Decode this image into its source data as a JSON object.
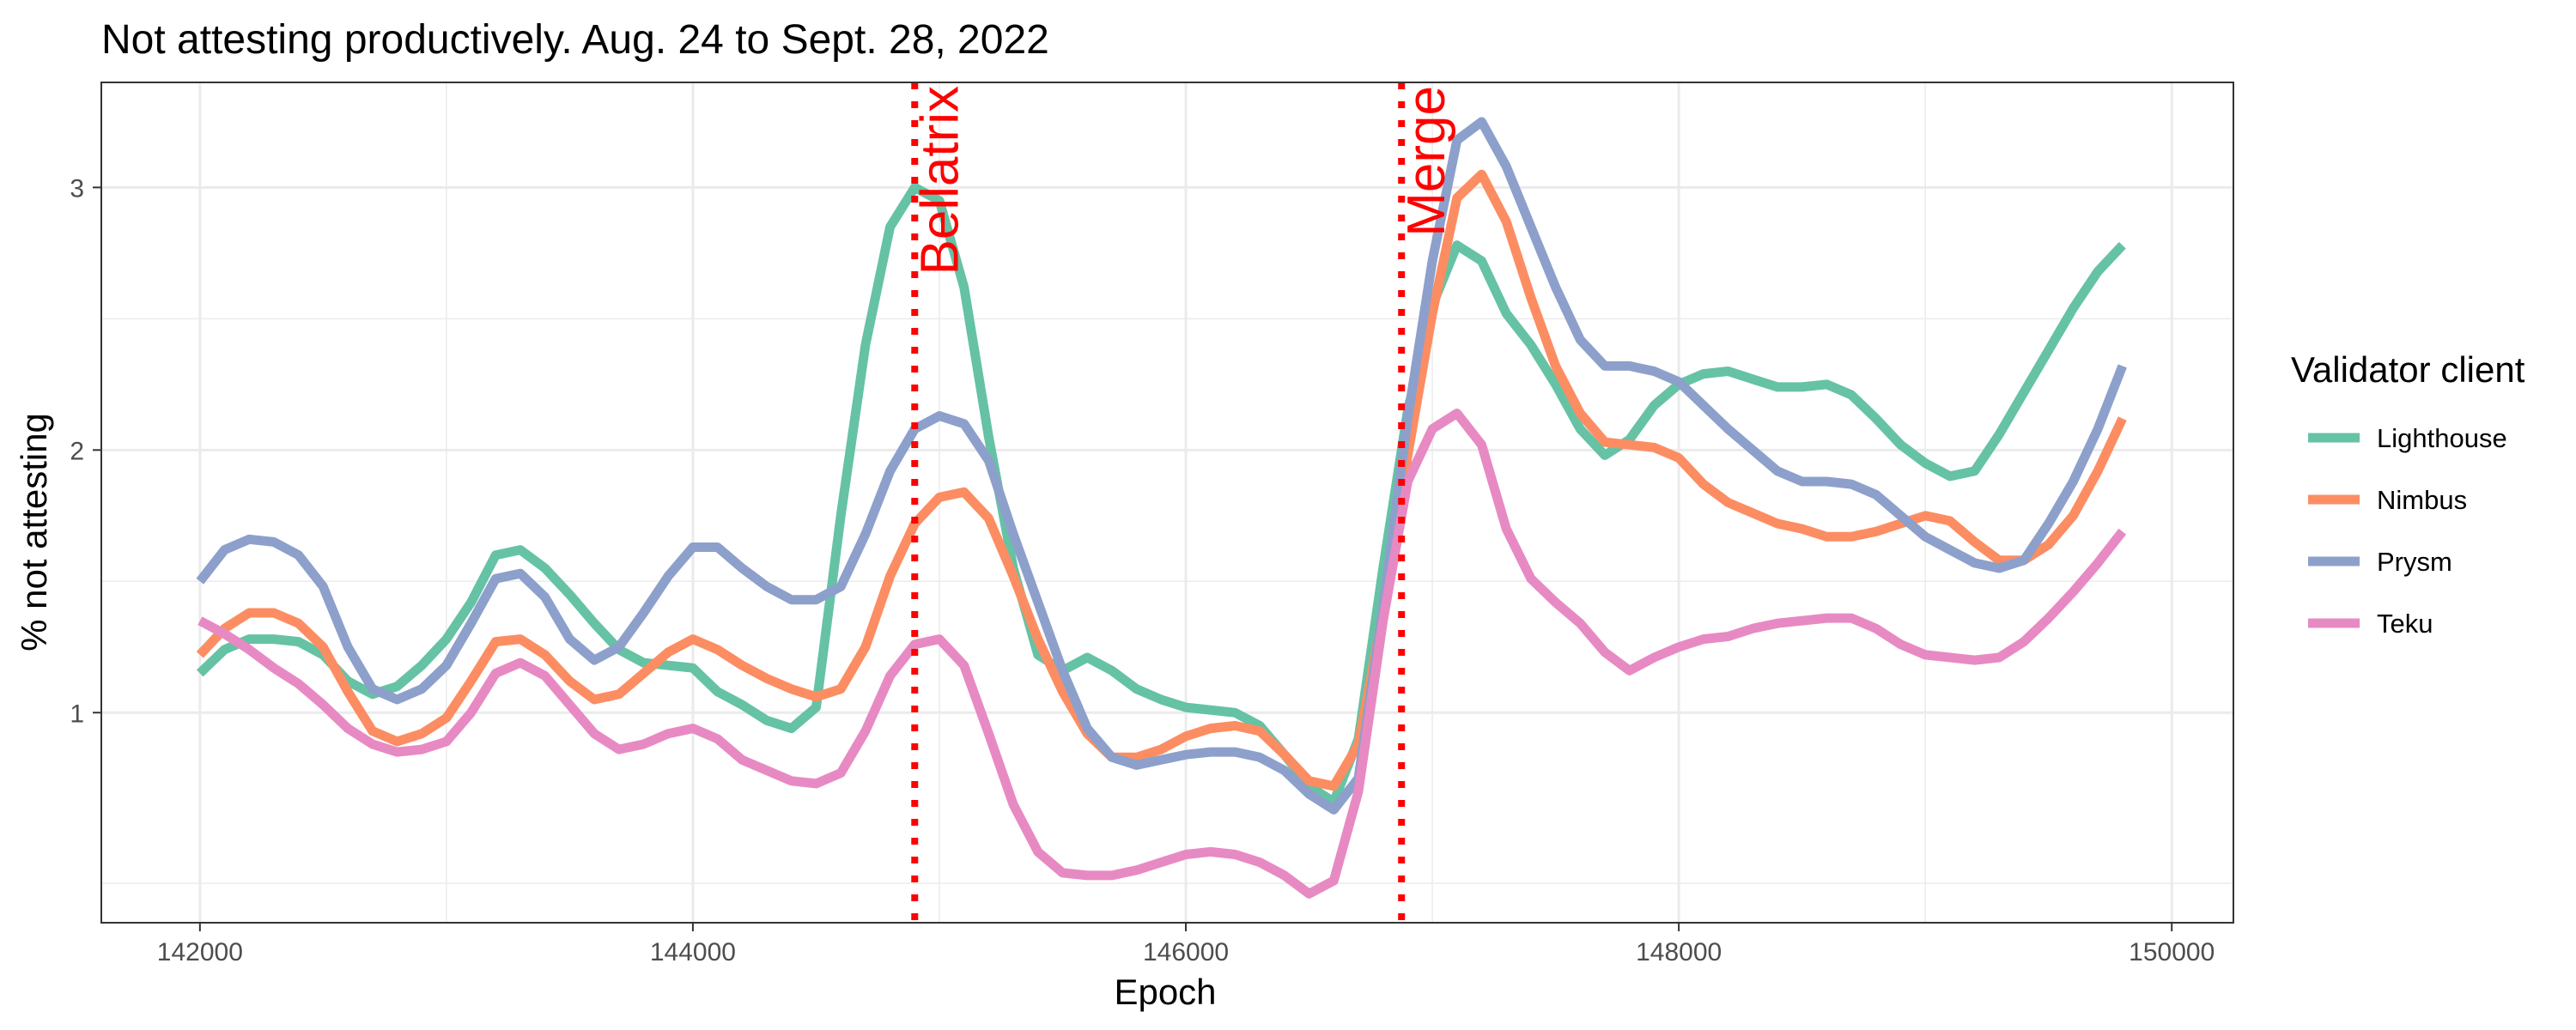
{
  "chart_data": {
    "type": "line",
    "title": "Not attesting productively. Aug. 24 to Sept. 28, 2022",
    "xlabel": "Epoch",
    "ylabel": "% not attesting",
    "xlim": [
      141600,
      150250
    ],
    "ylim": [
      0.2,
      3.4
    ],
    "x_ticks": [
      142000,
      144000,
      146000,
      148000,
      150000
    ],
    "x_tick_labels": [
      "142000",
      "144000",
      "146000",
      "148000",
      "150000"
    ],
    "y_ticks": [
      1,
      2,
      3
    ],
    "y_tick_labels": [
      "1",
      "2",
      "3"
    ],
    "grid": true,
    "legend": {
      "title": "Validator client",
      "position": "right"
    },
    "x": [
      142000,
      142100,
      142200,
      142300,
      142400,
      142500,
      142600,
      142700,
      142800,
      142900,
      143000,
      143100,
      143200,
      143300,
      143400,
      143500,
      143600,
      143700,
      143800,
      143900,
      144000,
      144100,
      144200,
      144300,
      144400,
      144500,
      144600,
      144700,
      144800,
      144900,
      145000,
      145100,
      145200,
      145300,
      145400,
      145500,
      145600,
      145700,
      145800,
      145900,
      146000,
      146100,
      146200,
      146300,
      146400,
      146500,
      146600,
      146700,
      146800,
      146900,
      147000,
      147100,
      147200,
      147300,
      147400,
      147500,
      147600,
      147700,
      147800,
      147900,
      148000,
      148100,
      148200,
      148300,
      148400,
      148500,
      148600,
      148700,
      148800,
      148900,
      149000,
      149100,
      149200,
      149300,
      149400,
      149500,
      149600,
      149700,
      149800
    ],
    "series": [
      {
        "name": "Lighthouse",
        "color": "#66c2a5",
        "values": [
          1.15,
          1.24,
          1.28,
          1.28,
          1.27,
          1.22,
          1.12,
          1.07,
          1.1,
          1.18,
          1.28,
          1.42,
          1.6,
          1.62,
          1.55,
          1.45,
          1.34,
          1.24,
          1.19,
          1.18,
          1.17,
          1.08,
          1.03,
          0.97,
          0.94,
          1.02,
          1.75,
          2.4,
          2.85,
          3.0,
          2.95,
          2.62,
          2.05,
          1.55,
          1.22,
          1.16,
          1.21,
          1.16,
          1.09,
          1.05,
          1.02,
          1.01,
          1.0,
          0.95,
          0.84,
          0.72,
          0.66,
          0.9,
          1.55,
          2.15,
          2.55,
          2.78,
          2.72,
          2.52,
          2.4,
          2.25,
          2.08,
          1.98,
          2.04,
          2.17,
          2.25,
          2.29,
          2.3,
          2.27,
          2.24,
          2.24,
          2.25,
          2.21,
          2.12,
          2.02,
          1.95,
          1.9,
          1.92,
          2.06,
          2.22,
          2.38,
          2.54,
          2.68,
          2.78
        ]
      },
      {
        "name": "Nimbus",
        "color": "#fc8d62",
        "values": [
          1.22,
          1.32,
          1.38,
          1.38,
          1.34,
          1.25,
          1.08,
          0.93,
          0.89,
          0.92,
          0.98,
          1.12,
          1.27,
          1.28,
          1.22,
          1.12,
          1.05,
          1.07,
          1.15,
          1.23,
          1.28,
          1.24,
          1.18,
          1.13,
          1.09,
          1.06,
          1.09,
          1.25,
          1.52,
          1.72,
          1.82,
          1.84,
          1.74,
          1.52,
          1.28,
          1.08,
          0.92,
          0.83,
          0.83,
          0.86,
          0.91,
          0.94,
          0.95,
          0.93,
          0.84,
          0.74,
          0.72,
          0.88,
          1.38,
          1.98,
          2.52,
          2.96,
          3.05,
          2.87,
          2.58,
          2.32,
          2.14,
          2.03,
          2.02,
          2.01,
          1.97,
          1.87,
          1.8,
          1.76,
          1.72,
          1.7,
          1.67,
          1.67,
          1.69,
          1.72,
          1.75,
          1.73,
          1.65,
          1.58,
          1.58,
          1.64,
          1.75,
          1.92,
          2.12
        ]
      },
      {
        "name": "Prysm",
        "color": "#8da0cb",
        "values": [
          1.5,
          1.62,
          1.66,
          1.65,
          1.6,
          1.48,
          1.25,
          1.09,
          1.05,
          1.09,
          1.18,
          1.34,
          1.51,
          1.53,
          1.44,
          1.28,
          1.2,
          1.25,
          1.38,
          1.52,
          1.63,
          1.63,
          1.55,
          1.48,
          1.43,
          1.43,
          1.48,
          1.68,
          1.92,
          2.08,
          2.13,
          2.1,
          1.96,
          1.68,
          1.42,
          1.16,
          0.94,
          0.83,
          0.8,
          0.82,
          0.84,
          0.85,
          0.85,
          0.83,
          0.78,
          0.69,
          0.63,
          0.75,
          1.4,
          2.12,
          2.72,
          3.18,
          3.25,
          3.08,
          2.85,
          2.62,
          2.42,
          2.32,
          2.32,
          2.3,
          2.26,
          2.17,
          2.08,
          2.0,
          1.92,
          1.88,
          1.88,
          1.87,
          1.83,
          1.75,
          1.67,
          1.62,
          1.57,
          1.55,
          1.58,
          1.72,
          1.88,
          2.08,
          2.32
        ]
      },
      {
        "name": "Teku",
        "color": "#e78ac3",
        "values": [
          1.35,
          1.3,
          1.24,
          1.17,
          1.11,
          1.03,
          0.94,
          0.88,
          0.85,
          0.86,
          0.89,
          1.0,
          1.15,
          1.19,
          1.14,
          1.03,
          0.92,
          0.86,
          0.88,
          0.92,
          0.94,
          0.9,
          0.82,
          0.78,
          0.74,
          0.73,
          0.77,
          0.93,
          1.14,
          1.26,
          1.28,
          1.18,
          0.92,
          0.65,
          0.47,
          0.39,
          0.38,
          0.38,
          0.4,
          0.43,
          0.46,
          0.47,
          0.46,
          0.43,
          0.38,
          0.31,
          0.36,
          0.7,
          1.35,
          1.88,
          2.08,
          2.14,
          2.02,
          1.7,
          1.51,
          1.42,
          1.34,
          1.23,
          1.16,
          1.21,
          1.25,
          1.28,
          1.29,
          1.32,
          1.34,
          1.35,
          1.36,
          1.36,
          1.32,
          1.26,
          1.22,
          1.21,
          1.2,
          1.21,
          1.27,
          1.36,
          1.46,
          1.57,
          1.69
        ]
      }
    ],
    "annotations": [
      {
        "label": "Bellatrix",
        "x": 144900,
        "color": "#ff0000",
        "style": "dotted"
      },
      {
        "label": "Merge",
        "x": 146875,
        "color": "#ff0000",
        "style": "dotted"
      }
    ]
  }
}
